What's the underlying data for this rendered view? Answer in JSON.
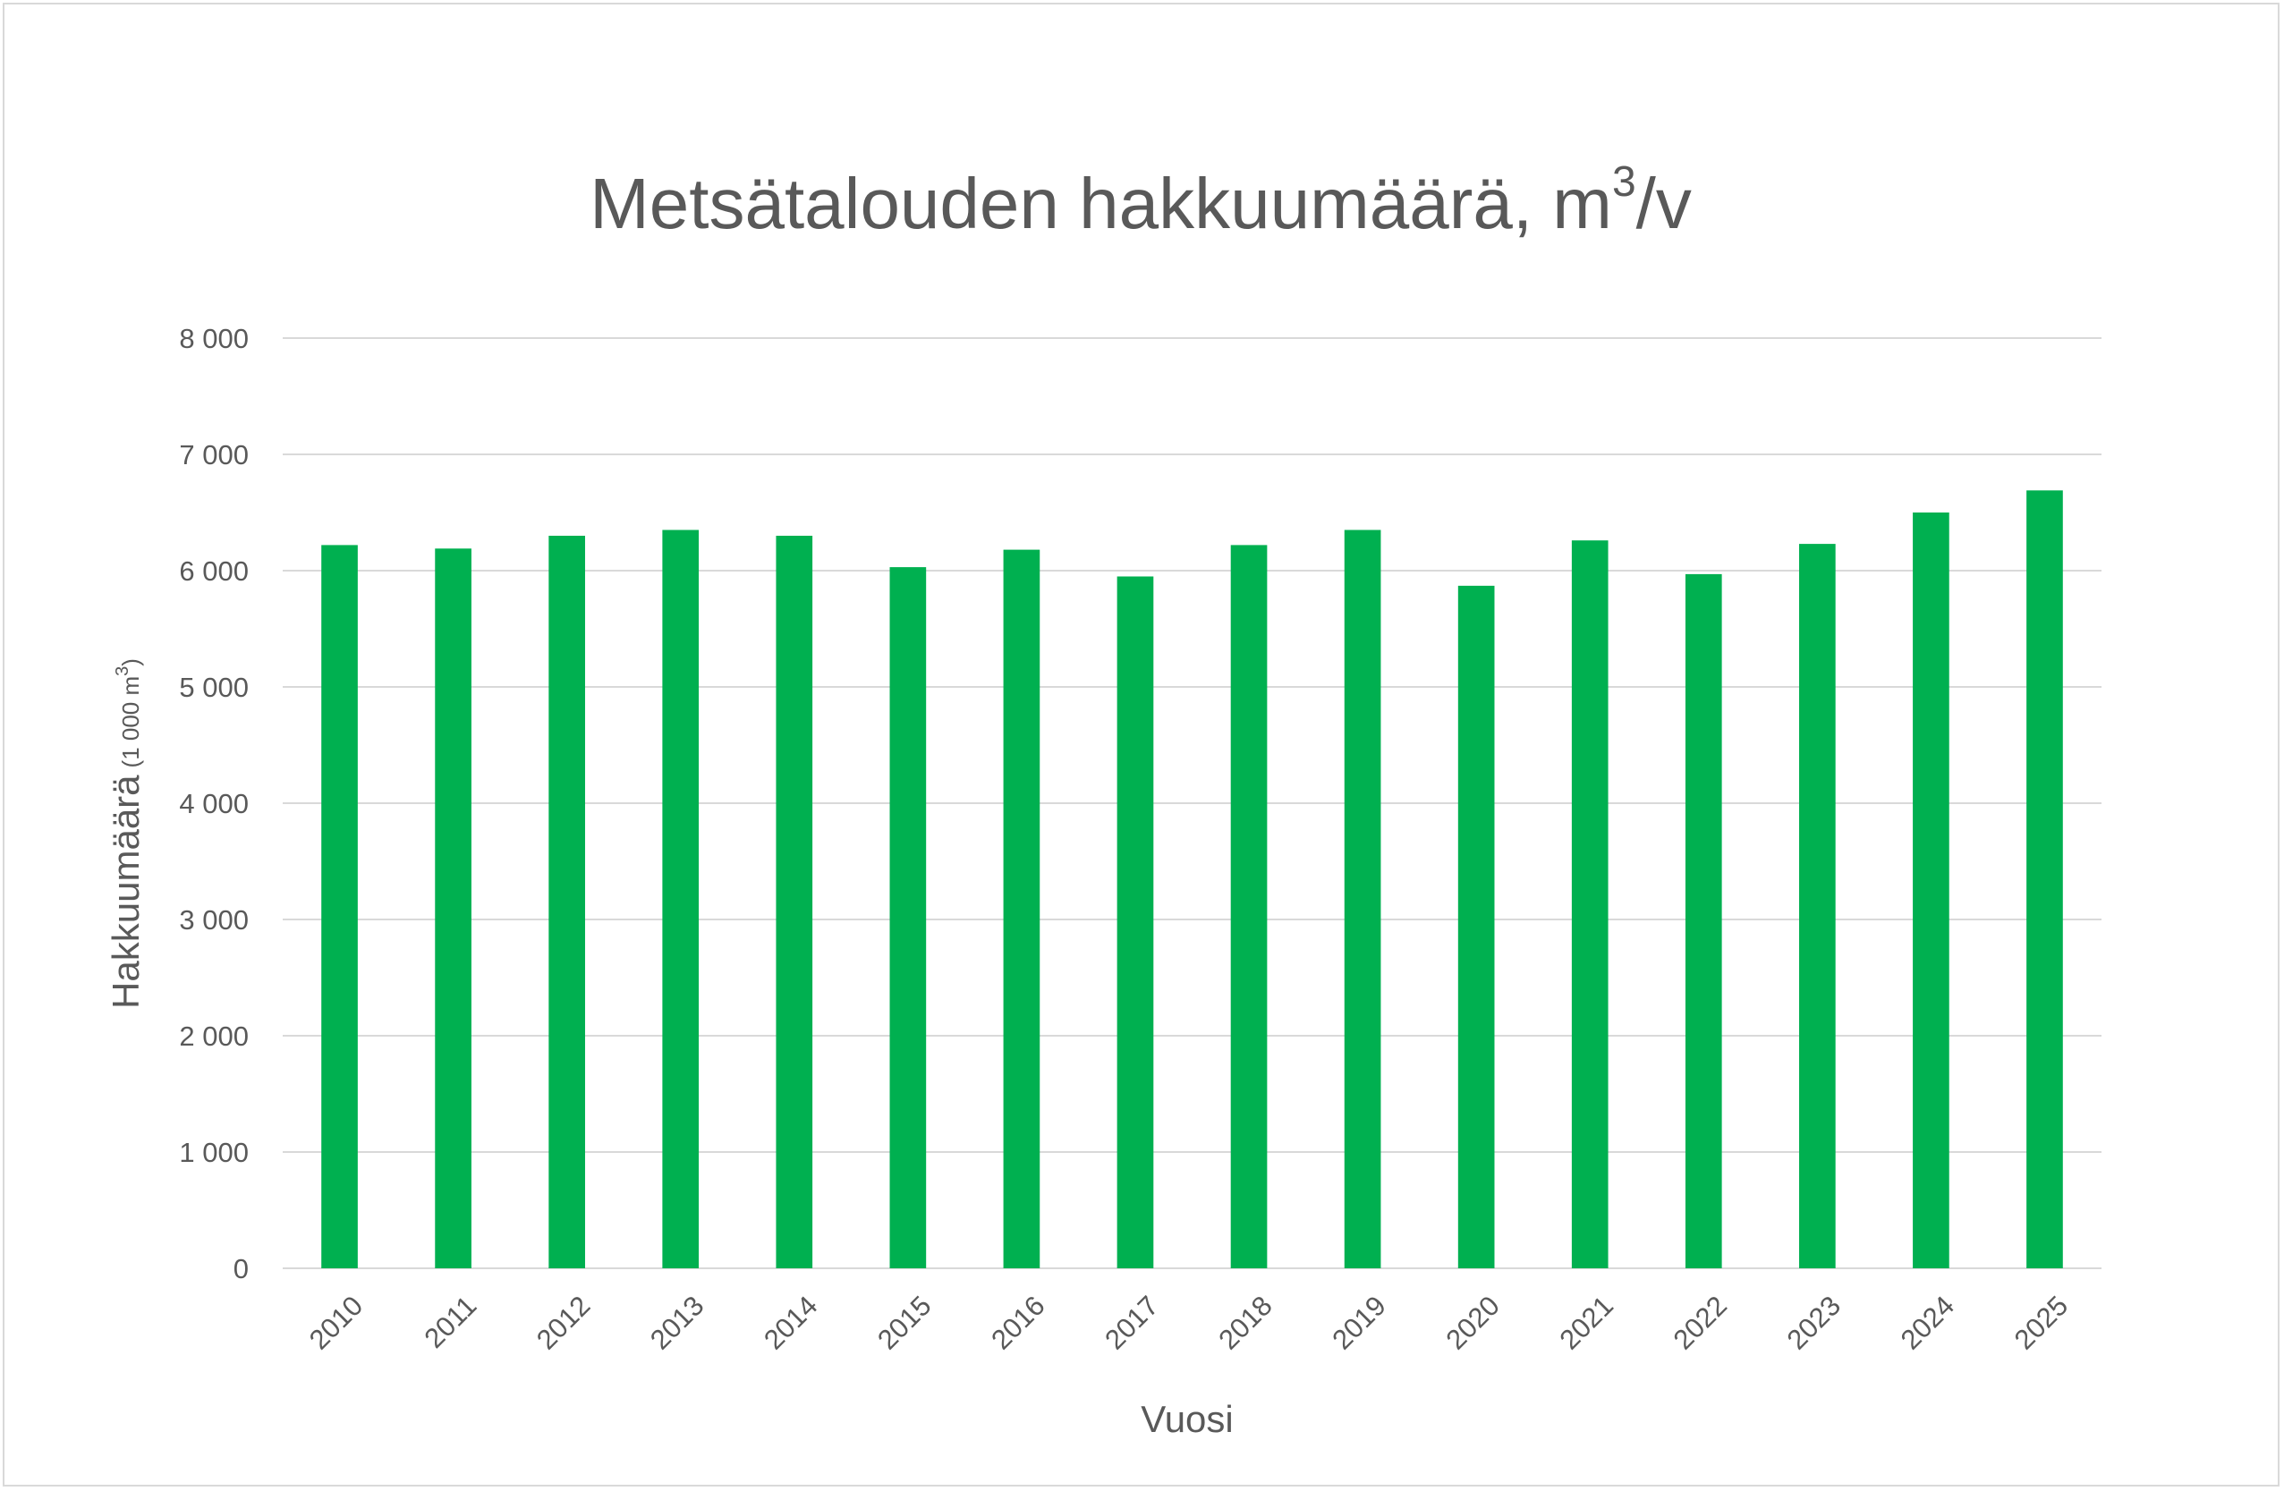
{
  "chart_data": {
    "type": "bar",
    "title": {
      "main": "Metsätalouden hakkuumäärä, m",
      "superscript": "3",
      "suffix": "/v"
    },
    "xlabel": "Vuosi",
    "ylabel": {
      "main": "Hakkuumäärä",
      "unit_prefix": "(1 000 m",
      "unit_superscript": "3",
      "unit_suffix": ")"
    },
    "categories": [
      "2010",
      "2011",
      "2012",
      "2013",
      "2014",
      "2015",
      "2016",
      "2017",
      "2018",
      "2019",
      "2020",
      "2021",
      "2022",
      "2023",
      "2024",
      "2025"
    ],
    "values": [
      6220,
      6190,
      6300,
      6350,
      6300,
      6030,
      6180,
      5950,
      6220,
      6350,
      5870,
      6260,
      5970,
      6230,
      6500,
      6690
    ],
    "ylim": [
      0,
      8000
    ],
    "yticks": [
      0,
      1000,
      2000,
      3000,
      4000,
      5000,
      6000,
      7000,
      8000
    ],
    "ytick_labels": [
      "0",
      "1 000",
      "2 000",
      "3 000",
      "4 000",
      "5 000",
      "6 000",
      "7 000",
      "8 000"
    ],
    "grid": true,
    "legend": "none",
    "colors": {
      "bar": "#00b050",
      "grid": "#d9d9d9",
      "text": "#595959",
      "border": "#d9d9d9"
    }
  }
}
